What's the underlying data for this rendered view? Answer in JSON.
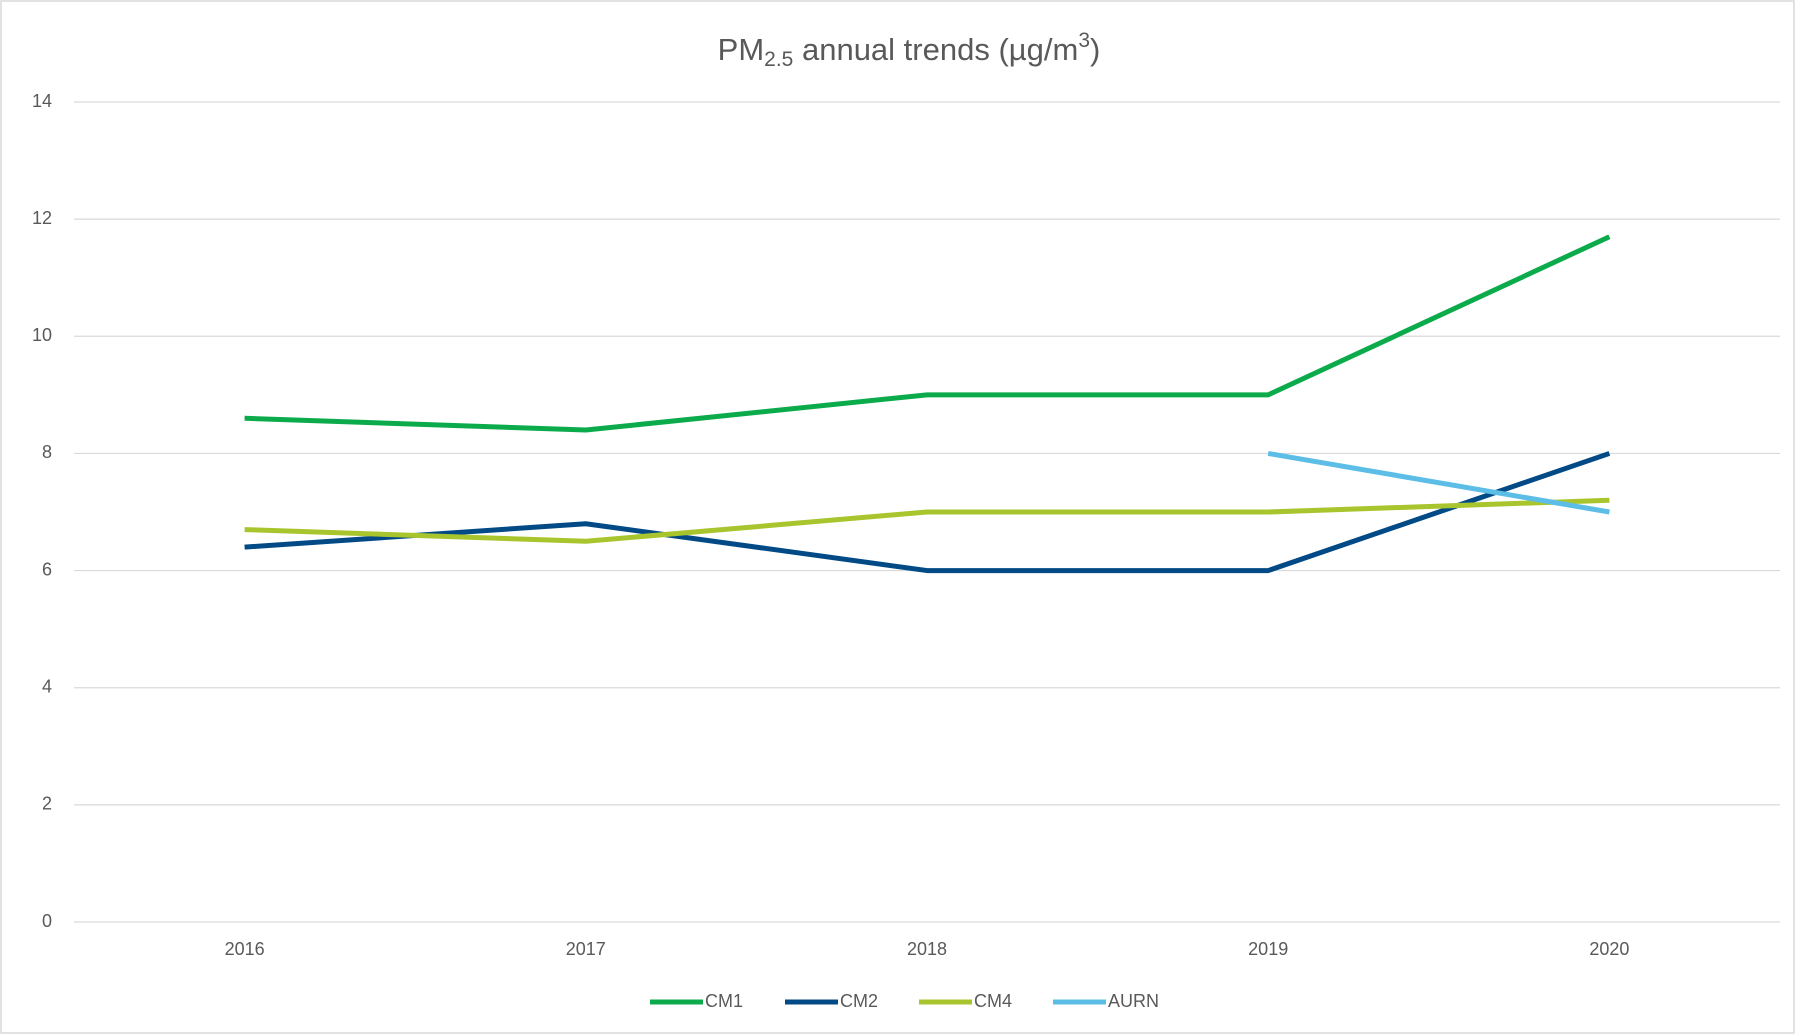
{
  "chart_data": {
    "type": "line",
    "title": [
      "PM",
      "2.5",
      " annual trends (µg/m",
      "3",
      ")"
    ],
    "categories": [
      "2016",
      "2017",
      "2018",
      "2019",
      "2020"
    ],
    "series": [
      {
        "name": "CM1",
        "color": "#0bab4c",
        "values": [
          8.6,
          8.4,
          9.0,
          9.0,
          11.7
        ]
      },
      {
        "name": "CM2",
        "color": "#014a86",
        "values": [
          6.4,
          6.8,
          6.0,
          6.0,
          8.0
        ]
      },
      {
        "name": "CM4",
        "color": "#a8c52e",
        "values": [
          6.7,
          6.5,
          7.0,
          7.0,
          7.2
        ]
      },
      {
        "name": "AURN",
        "color": "#5cbde6",
        "values": [
          null,
          null,
          null,
          8.0,
          7.0
        ]
      }
    ],
    "ylim": [
      0,
      14
    ],
    "yticks": [
      0,
      2,
      4,
      6,
      8,
      10,
      12,
      14
    ],
    "grid": true,
    "legend": "bottom"
  }
}
